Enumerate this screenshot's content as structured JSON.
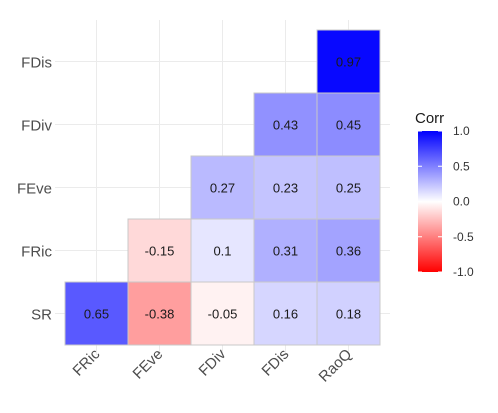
{
  "chart_data": {
    "type": "heatmap",
    "rows": [
      "SR",
      "FRic",
      "FEve",
      "FDiv",
      "FDis"
    ],
    "cols": [
      "FRic",
      "FEve",
      "FDiv",
      "FDis",
      "RaoQ"
    ],
    "cells": [
      {
        "row": "SR",
        "col": "FRic",
        "value": 0.65
      },
      {
        "row": "SR",
        "col": "FEve",
        "value": -0.38
      },
      {
        "row": "SR",
        "col": "FDiv",
        "value": -0.05
      },
      {
        "row": "SR",
        "col": "FDis",
        "value": 0.16
      },
      {
        "row": "SR",
        "col": "RaoQ",
        "value": 0.18
      },
      {
        "row": "FRic",
        "col": "FEve",
        "value": -0.15
      },
      {
        "row": "FRic",
        "col": "FDiv",
        "value": 0.1
      },
      {
        "row": "FRic",
        "col": "FDis",
        "value": 0.31
      },
      {
        "row": "FRic",
        "col": "RaoQ",
        "value": 0.36
      },
      {
        "row": "FEve",
        "col": "FDiv",
        "value": 0.27
      },
      {
        "row": "FEve",
        "col": "FDis",
        "value": 0.23
      },
      {
        "row": "FEve",
        "col": "RaoQ",
        "value": 0.25
      },
      {
        "row": "FDiv",
        "col": "FDis",
        "value": 0.43
      },
      {
        "row": "FDiv",
        "col": "RaoQ",
        "value": 0.45
      },
      {
        "row": "FDis",
        "col": "RaoQ",
        "value": 0.97
      }
    ],
    "legend": {
      "title": "Corr",
      "ticks": [
        "1.0",
        "0.5",
        "0.0",
        "-0.5",
        "-1.0"
      ],
      "range": [
        -1,
        1
      ],
      "placement": "right"
    },
    "color_low": "#FF0000",
    "color_mid": "#FFFFFF",
    "color_high": "#0000FF",
    "grid": true
  }
}
